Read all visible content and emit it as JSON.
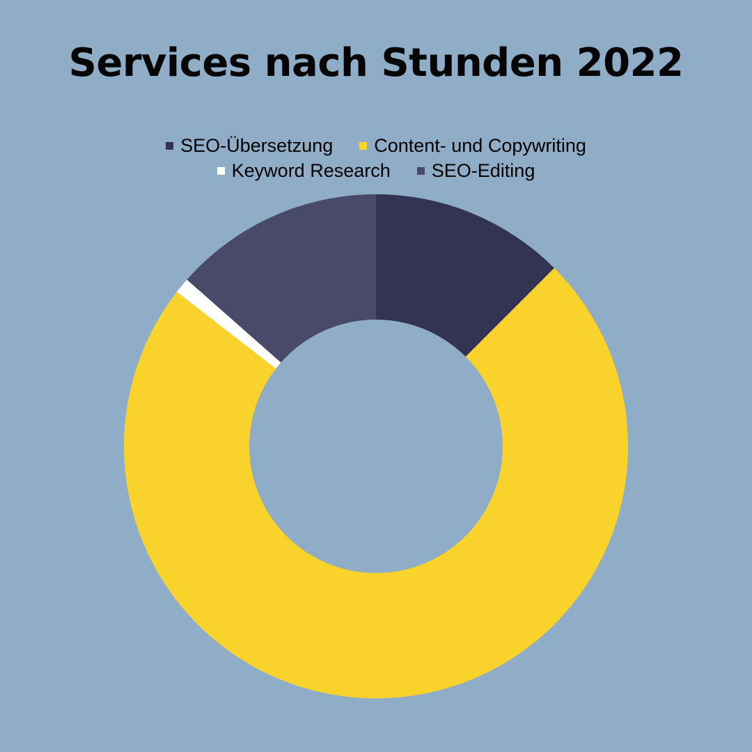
{
  "colors": {
    "background": "#8fadc6"
  },
  "chart_data": {
    "type": "pie",
    "title": "Services nach Stunden 2022",
    "donut": true,
    "legend_position": "top",
    "series": [
      {
        "name": "SEO-Übersetzung",
        "value": 12.5,
        "color": "#323452"
      },
      {
        "name": "Content- und Copywriting",
        "value": 73,
        "color": "#fad22c"
      },
      {
        "name": "Keyword Research",
        "value": 1,
        "color": "#ffffff"
      },
      {
        "name": "SEO-Editing",
        "value": 13.5,
        "color": "#494a69"
      }
    ]
  }
}
